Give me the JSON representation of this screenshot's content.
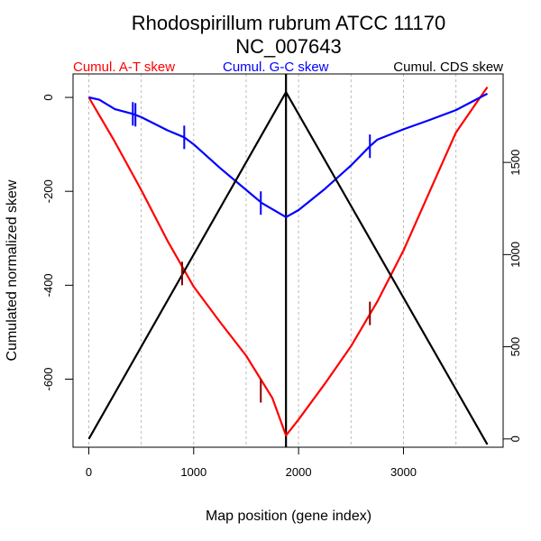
{
  "chart_data": {
    "type": "line",
    "title": [
      "Rhodospirillum rubrum ATCC 11170",
      "NC_007643"
    ],
    "xlabel": "Map position (gene index)",
    "ylabel": "Cumulated normalized skew",
    "xlim": [
      -150,
      3950
    ],
    "ylim_left": [
      -745,
      50
    ],
    "ylim_right": [
      -45,
      1980
    ],
    "x_ticks": [
      0,
      1000,
      2000,
      3000
    ],
    "x_tick_labels": [
      "0",
      "1000",
      "2000",
      "3000"
    ],
    "y_ticks_left": [
      0,
      -200,
      -400,
      -600
    ],
    "y_tick_labels_left": [
      "0",
      "-200",
      "-400",
      "-600"
    ],
    "y_ticks_right": [
      0,
      500,
      1000,
      1500
    ],
    "y_tick_labels_right": [
      "0",
      "500",
      "1000",
      "1500"
    ],
    "grid_x": [
      0,
      500,
      1000,
      1500,
      2000,
      2500,
      3000,
      3500
    ],
    "grid": "vertical dotted",
    "vline_x": 1880,
    "legend_position": "top",
    "series": [
      {
        "name": "Cumul. A-T skew",
        "axis": "left",
        "color": "#ff0000",
        "marker_color": "#8b0000",
        "x": [
          0,
          250,
          500,
          750,
          1000,
          1250,
          1500,
          1750,
          1880,
          2000,
          2250,
          2500,
          2750,
          3000,
          3250,
          3500,
          3700,
          3800
        ],
        "y": [
          0,
          -95,
          -197,
          -305,
          -403,
          -478,
          -550,
          -640,
          -720,
          -686,
          -610,
          -530,
          -435,
          -326,
          -200,
          -75,
          -10,
          22
        ],
        "markers": [
          {
            "x": 890,
            "y": -375
          },
          {
            "x": 1640,
            "y": -625
          },
          {
            "x": 2680,
            "y": -460
          }
        ]
      },
      {
        "name": "Cumul. G-C skew",
        "axis": "left",
        "color": "#0000ff",
        "marker_color": "#0000ff",
        "x": [
          0,
          100,
          250,
          420,
          500,
          750,
          910,
          1000,
          1250,
          1500,
          1650,
          1880,
          2000,
          2250,
          2500,
          2680,
          2750,
          3000,
          3250,
          3500,
          3800
        ],
        "y": [
          0,
          -5,
          -25,
          -35,
          -42,
          -70,
          -85,
          -100,
          -150,
          -197,
          -225,
          -255,
          -240,
          -195,
          -145,
          -104,
          -90,
          -68,
          -48,
          -27,
          8
        ],
        "markers": [
          {
            "x": 420,
            "y": -35
          },
          {
            "x": 445,
            "y": -37
          },
          {
            "x": 910,
            "y": -85
          },
          {
            "x": 1640,
            "y": -225
          },
          {
            "x": 2680,
            "y": -104
          }
        ]
      },
      {
        "name": "Cumul. CDS skew",
        "axis": "right",
        "color": "#000000",
        "x": [
          0,
          1880,
          3800
        ],
        "y": [
          0,
          1881,
          -30
        ]
      }
    ]
  }
}
